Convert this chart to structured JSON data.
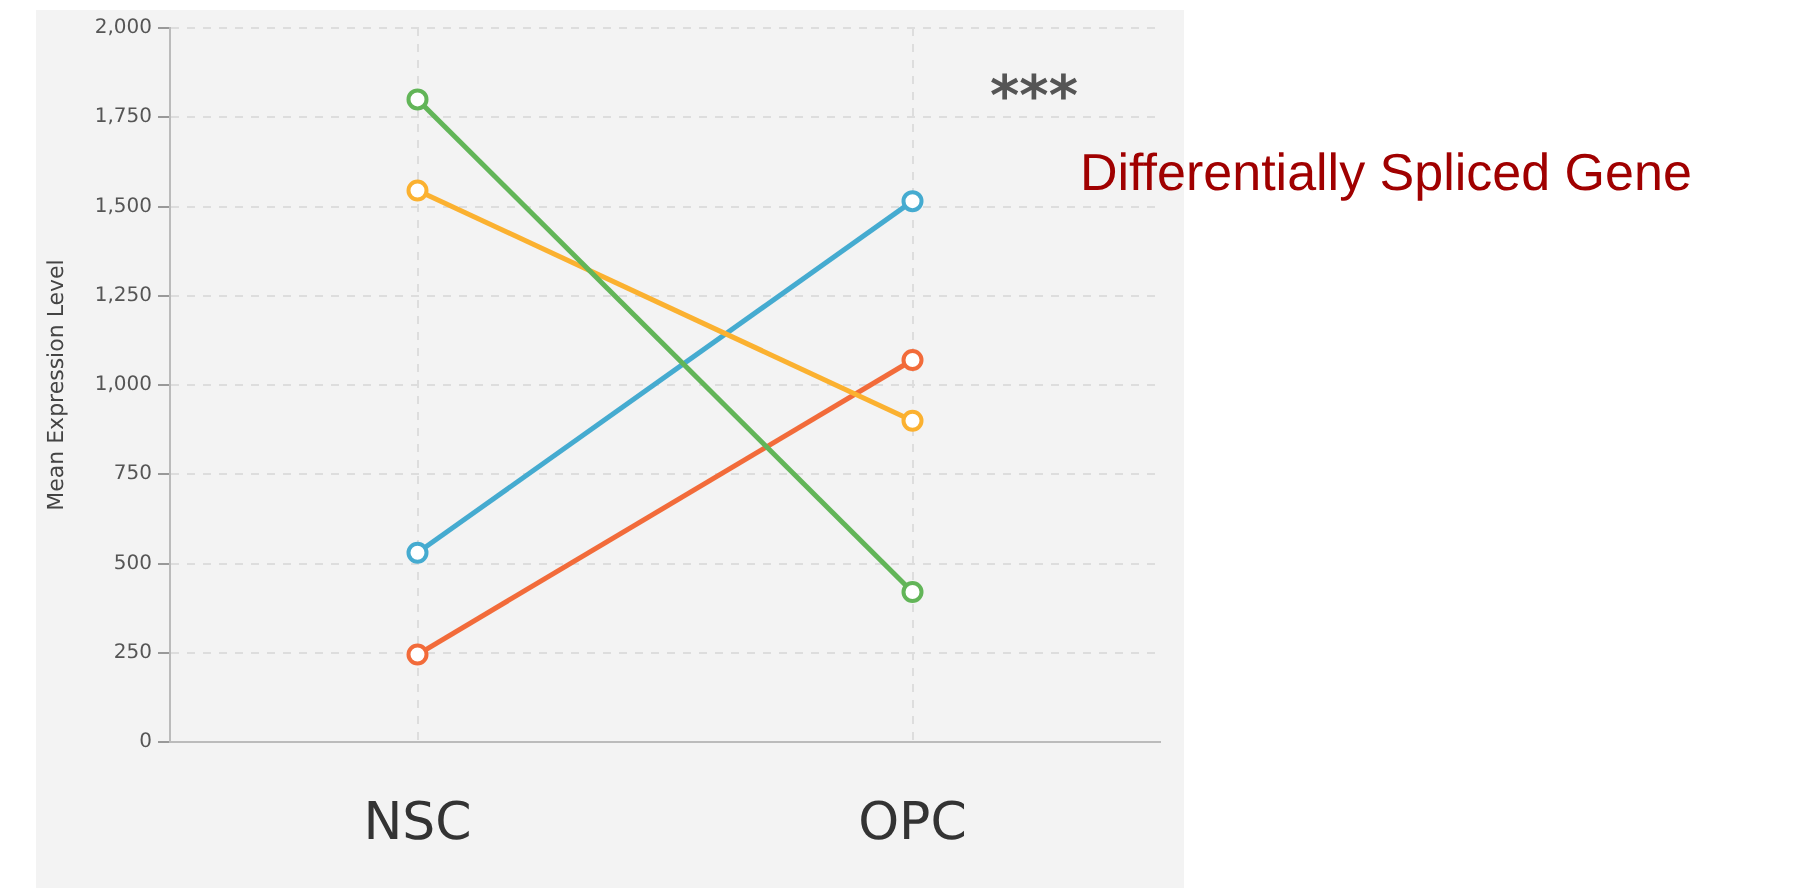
{
  "chart_data": {
    "type": "line",
    "ylabel": "Mean Expression Level",
    "categories": [
      "NSC",
      "OPC"
    ],
    "series": [
      {
        "color": "#62b558",
        "values": [
          1800,
          420
        ]
      },
      {
        "color": "#fbb130",
        "values": [
          1545,
          900
        ]
      },
      {
        "color": "#45abd0",
        "values": [
          530,
          1515
        ]
      },
      {
        "color": "#f26b3a",
        "values": [
          245,
          1070
        ]
      }
    ],
    "ylim": [
      0,
      2000
    ],
    "yticks": [
      0,
      250,
      500,
      750,
      {
        "value": 1000,
        "label": "1,000"
      },
      {
        "value": 1250,
        "label": "1,250"
      },
      {
        "value": 1500,
        "label": "1,500"
      },
      {
        "value": 1750,
        "label": "1,750"
      },
      {
        "value": 2000,
        "label": "2,000"
      }
    ],
    "grid": true,
    "marker": "circle",
    "line_style": "solid",
    "legend": false,
    "annotations": [
      "***",
      "Differentially Spliced Gene"
    ]
  }
}
